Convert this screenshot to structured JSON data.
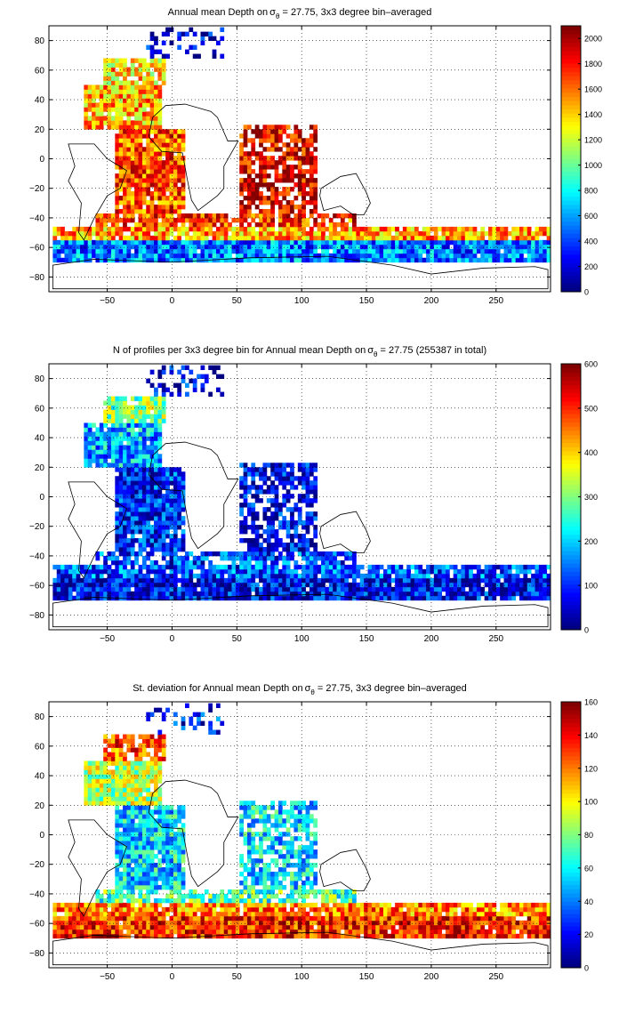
{
  "chart_data": [
    {
      "type": "heatmap",
      "title_prefix": "Annual mean Depth on",
      "title_sigma": "σ",
      "title_sub": "θ",
      "title_suffix": " = 27.75, 3x3 degree bin–averaged",
      "xlim": [
        -95,
        292
      ],
      "ylim": [
        -90,
        90
      ],
      "xticks": [
        -50,
        0,
        50,
        100,
        150,
        200,
        250
      ],
      "yticks": [
        -80,
        -60,
        -40,
        -20,
        0,
        20,
        40,
        60,
        80
      ],
      "grid": true,
      "colorbar": {
        "min": 0,
        "max": 2100,
        "ticks": [
          0,
          200,
          400,
          600,
          800,
          1000,
          1200,
          1400,
          1600,
          1800,
          2000
        ]
      }
    },
    {
      "type": "heatmap",
      "title_prefix": "N of profiles per 3x3 degree bin for Annual mean Depth on",
      "title_sigma": "σ",
      "title_sub": "θ",
      "title_suffix": " = 27.75 (255387 in total)",
      "xlim": [
        -95,
        292
      ],
      "ylim": [
        -90,
        90
      ],
      "xticks": [
        -50,
        0,
        50,
        100,
        150,
        200,
        250
      ],
      "yticks": [
        -80,
        -60,
        -40,
        -20,
        0,
        20,
        40,
        60,
        80
      ],
      "grid": true,
      "colorbar": {
        "min": 0,
        "max": 600,
        "ticks": [
          0,
          100,
          200,
          300,
          400,
          500,
          600
        ]
      }
    },
    {
      "type": "heatmap",
      "title_prefix": "St. deviation for Annual mean Depth on",
      "title_sigma": "σ",
      "title_sub": "θ",
      "title_suffix": " = 27.75, 3x3 degree bin–averaged",
      "xlim": [
        -95,
        292
      ],
      "ylim": [
        -90,
        90
      ],
      "xticks": [
        -50,
        0,
        50,
        100,
        150,
        200,
        250
      ],
      "yticks": [
        -80,
        -60,
        -40,
        -20,
        0,
        20,
        40,
        60,
        80
      ],
      "grid": true,
      "colorbar": {
        "min": 0,
        "max": 160,
        "ticks": [
          0,
          20,
          40,
          60,
          80,
          100,
          120,
          140,
          160
        ]
      }
    }
  ]
}
